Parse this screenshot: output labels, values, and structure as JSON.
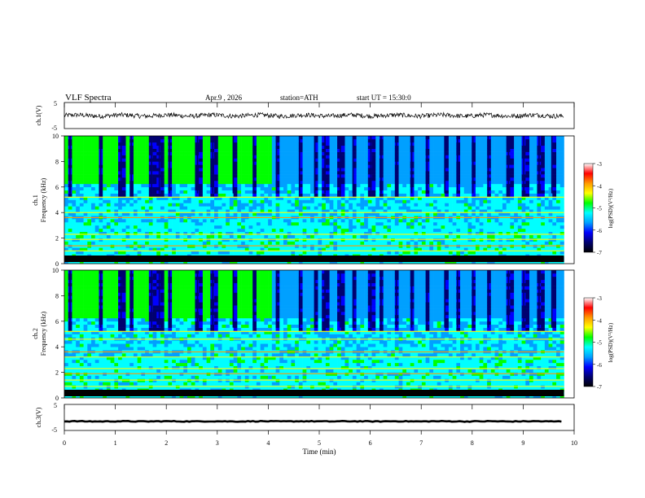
{
  "header": {
    "title": "VLF  Spectra",
    "date": "Apr.9  , 2026",
    "station": "station=ATH",
    "start_ut": "start  UT  =   15:30:0"
  },
  "colors": {
    "colormap": [
      "#000000",
      "#000070",
      "#0000ff",
      "#00a0ff",
      "#00ffff",
      "#00ff00",
      "#ffff00",
      "#ff9900",
      "#ff0000",
      "#ffffff"
    ],
    "trace": "#000000"
  },
  "chart_data": [
    {
      "type": "line",
      "panel": "ch1_waveform",
      "ylabel": "ch.1(V)",
      "ylim": [
        -5,
        5
      ],
      "yticks": [
        "5",
        "-5"
      ],
      "x_range_min": [
        0,
        9.8
      ],
      "series": [
        {
          "values_description_free": true,
          "noise_amplitude_v": 0.9,
          "mean_v": 0
        }
      ]
    },
    {
      "type": "heatmap",
      "panel": "ch1_spectrogram",
      "ylabel": [
        "ch.1",
        "Frequency  (kHz)"
      ],
      "ylim": [
        0,
        10
      ],
      "yticks": [
        "0",
        "2",
        "4",
        "6",
        "8",
        "10"
      ],
      "colorbar": {
        "label": "log(PSD)(V²/Hz)",
        "range": [
          -7,
          -3
        ],
        "ticks": [
          "-3",
          "-4",
          "-5",
          "-6",
          "-7"
        ]
      },
      "bands_khz": [
        0.3,
        0.6,
        1.0,
        1.4,
        1.9,
        2.3,
        3.6,
        4.0,
        5.2
      ],
      "sferic_bursts_min": [
        0.1,
        0.7,
        1.1,
        1.3,
        1.7,
        1.85,
        2.05,
        2.6,
        2.9,
        3.3,
        3.7,
        4.15,
        4.6,
        4.9,
        5.1,
        5.4,
        5.65,
        6.0,
        6.2,
        6.5,
        6.8,
        7.1,
        7.45,
        7.7,
        8.0,
        8.3,
        8.7,
        9.0,
        9.3,
        9.55
      ]
    },
    {
      "type": "heatmap",
      "panel": "ch2_spectrogram",
      "ylabel": [
        "ch.2",
        "Frequency  (kHz)"
      ],
      "ylim": [
        0,
        10
      ],
      "yticks": [
        "0",
        "2",
        "4",
        "6",
        "8",
        "10"
      ],
      "colorbar": {
        "label": "log(PSD)(V²/Hz)",
        "range": [
          -7,
          -3
        ],
        "ticks": [
          "-3",
          "-4",
          "-5",
          "-6",
          "-7"
        ]
      },
      "bands_khz": [
        0.4,
        0.9,
        1.4,
        1.9,
        2.3,
        3.2,
        3.6,
        4.6,
        5.2
      ],
      "sferic_bursts_min": [
        0.1,
        0.7,
        1.1,
        1.3,
        1.7,
        1.85,
        2.05,
        2.6,
        2.9,
        3.3,
        3.7,
        4.15,
        4.6,
        4.9,
        5.1,
        5.4,
        5.65,
        6.0,
        6.2,
        6.5,
        6.8,
        7.1,
        7.45,
        7.7,
        8.0,
        8.3,
        8.7,
        9.0,
        9.3,
        9.55
      ]
    },
    {
      "type": "line",
      "panel": "ch3_waveform",
      "ylabel": "ch.3(V)",
      "ylim": [
        -5,
        5
      ],
      "yticks": [
        "5",
        "-5"
      ],
      "series": [
        {
          "mean_v": -1.5,
          "noise_amplitude_v": 0.15
        }
      ],
      "xlabel": "Time  (min)",
      "xlim": [
        0,
        10
      ],
      "xticks": [
        "0",
        "1",
        "2",
        "3",
        "4",
        "5",
        "6",
        "7",
        "8",
        "9",
        "10"
      ]
    }
  ]
}
